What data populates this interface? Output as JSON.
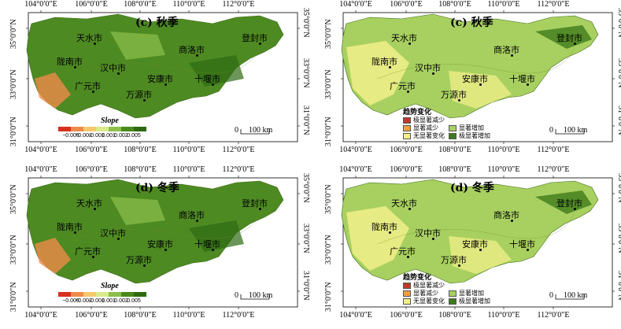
{
  "panels": [
    {
      "id": "c-slope",
      "title": "(c) 秋季",
      "top_ticks": [
        "104°0′0″E",
        "106°0′0″E",
        "108°0′0″E",
        "110°0′0″E",
        "112°0′0″E"
      ],
      "bottom_ticks": [
        "104°0′0″E",
        "106°0′0″E",
        "108°0′0″E",
        "110°0′0″E",
        "112°0′0″E"
      ],
      "left_ticks": [
        "35°0′0″N",
        "33°0′0″N",
        "31°0′0″N"
      ],
      "right_ticks": [
        "35°0′0″N",
        "33°0′0″N",
        "31°0′0″N"
      ],
      "cities": [
        "天水市",
        "陇南市",
        "汉中市",
        "商洛市",
        "登封市",
        "广元市",
        "万源市",
        "安康市",
        "十堰市"
      ],
      "legend_type": "slope",
      "slope_title": "Slope",
      "slope_ticks": [
        "−0.005",
        "−0.002",
        "−0.001",
        "0.001",
        "0.002",
        "0.005"
      ],
      "scale": {
        "zero": "0",
        "dist": "100 km"
      }
    },
    {
      "id": "c-trend",
      "title": "(c) 秋季",
      "top_ticks": [
        "104°0′0″E",
        "106°0′0″E",
        "108°0′0″E",
        "110°0′0″E",
        "112°0′0″E"
      ],
      "bottom_ticks": [
        "104°0′0″E",
        "106°0′0″E",
        "108°0′0″E",
        "110°0′0″E",
        "112°0′0″E"
      ],
      "left_ticks": [
        "35°0′0″N",
        "33°0′0″N",
        "31°0′0″N"
      ],
      "right_ticks": [
        "35°0′0″N",
        "33°0′0″N",
        "31°0′0″N"
      ],
      "cities": [
        "天水市",
        "陇南市",
        "汉中市",
        "商洛市",
        "登封市",
        "广元市",
        "万源市",
        "安康市",
        "十堰市"
      ],
      "legend_type": "trend",
      "trend_title": "趋势变化",
      "trend_items": [
        "极显著减少",
        "显著减少",
        "无显著变化",
        "显著增加",
        "极显著增加"
      ],
      "scale": {
        "zero": "0",
        "dist": "100 km"
      }
    },
    {
      "id": "d-slope",
      "title": "(d) 冬季",
      "top_ticks": [
        "104°0′0″E",
        "106°0′0″E",
        "108°0′0″E",
        "110°0′0″E",
        "112°0′0″E"
      ],
      "bottom_ticks": [
        "104°0′0″E",
        "106°0′0″E",
        "108°0′0″E",
        "110°0′0″E",
        "112°0′0″E"
      ],
      "left_ticks": [
        "35°0′0″N",
        "33°0′0″N",
        "31°0′0″N"
      ],
      "right_ticks": [
        "35°0′0″N",
        "33°0′0″N",
        "31°0′0″N"
      ],
      "cities": [
        "天水市",
        "陇南市",
        "汉中市",
        "商洛市",
        "登封市",
        "广元市",
        "万源市",
        "安康市",
        "十堰市"
      ],
      "legend_type": "slope",
      "slope_title": "Slope",
      "slope_ticks": [
        "−0.005",
        "−0.002",
        "−0.001",
        "0.001",
        "0.002",
        "0.005"
      ],
      "scale": {
        "zero": "0",
        "dist": "100 km"
      }
    },
    {
      "id": "d-trend",
      "title": "(d) 冬季",
      "top_ticks": [
        "104°0′0″E",
        "106°0′0″E",
        "108°0′0″E",
        "110°0′0″E",
        "112°0′0″E"
      ],
      "bottom_ticks": [
        "104°0′0″E",
        "106°0′0″E",
        "108°0′0″E",
        "110°0′0″E",
        "112°0′0″E"
      ],
      "left_ticks": [
        "35°0′0″N",
        "33°0′0″N",
        "31°0′0″N"
      ],
      "right_ticks": [
        "35°0′0″N",
        "33°0′0″N",
        "31°0′0″N"
      ],
      "cities": [
        "天水市",
        "陇南市",
        "汉中市",
        "商洛市",
        "登封市",
        "广元市",
        "万源市",
        "安康市",
        "十堰市"
      ],
      "legend_type": "trend",
      "trend_title": "趋势变化",
      "trend_items": [
        "极显著减少",
        "显著减少",
        "无显著变化",
        "显著增加",
        "极显著增加"
      ],
      "scale": {
        "zero": "0",
        "dist": "100 km"
      }
    }
  ],
  "colors": {
    "slope_ramp": [
      "#d7301f",
      "#f08a4b",
      "#f6c86e",
      "#d9ea8a",
      "#8cc04b",
      "#4a8a1c",
      "#2d6a12"
    ],
    "trend": [
      "#c0392b",
      "#f0a040",
      "#f2f08a",
      "#a8d060",
      "#3d7a1a"
    ],
    "map_green": "#4e8a22",
    "map_yellow": "#e9ef7a"
  }
}
